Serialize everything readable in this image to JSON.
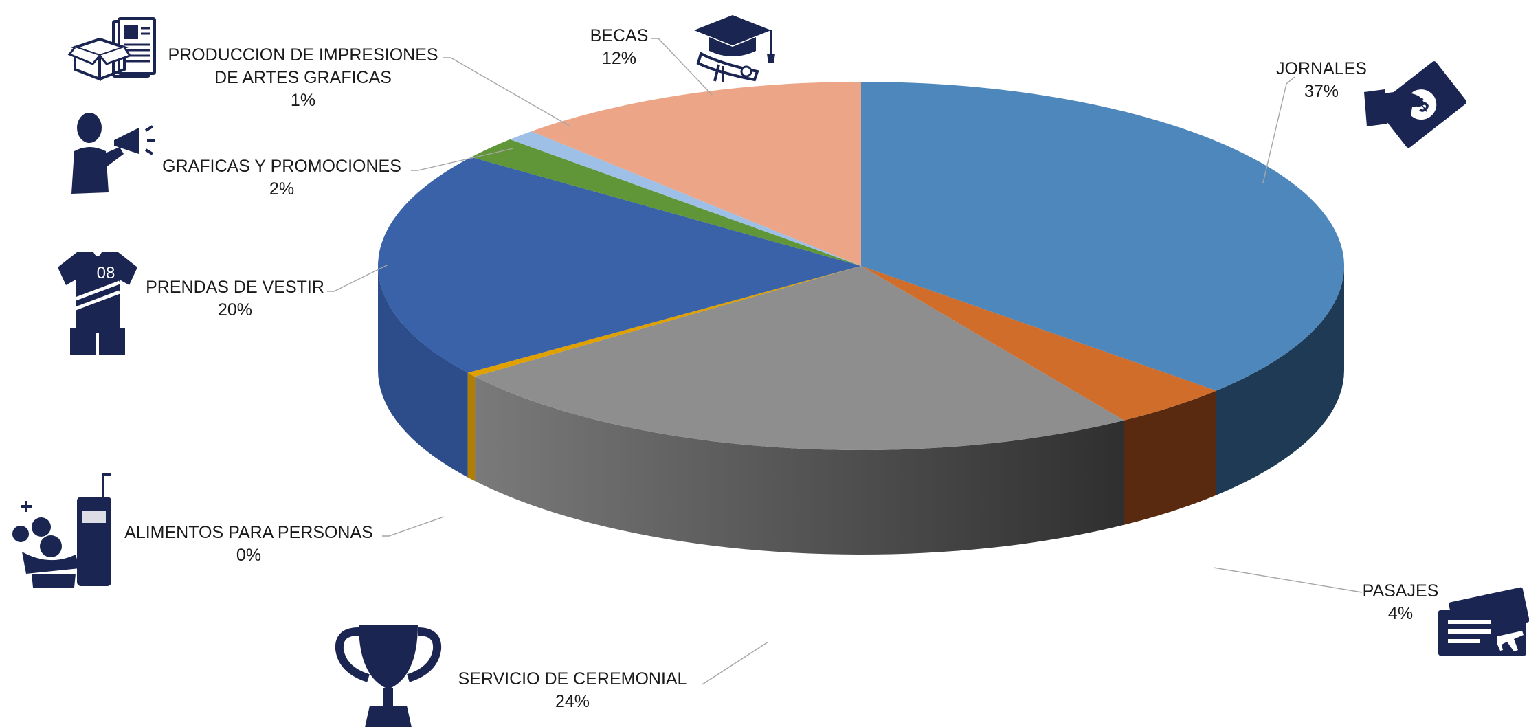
{
  "chart_data": {
    "type": "pie",
    "style": "3d",
    "categories": [
      "JORNALES",
      "PASAJES",
      "SERVICIO DE CEREMONIAL",
      "ALIMENTOS PARA PERSONAS",
      "PRENDAS DE VESTIR",
      "GRAFICAS Y PROMOCIONES",
      "PRODUCCION DE IMPRESIONES DE ARTES GRAFICAS",
      "BECAS"
    ],
    "values": [
      37,
      4,
      24,
      0.4,
      20,
      2,
      1,
      12
    ],
    "value_labels": [
      "37%",
      "4%",
      "24%",
      "0%",
      "20%",
      "2%",
      "1%",
      "12%"
    ],
    "colors": [
      "#4e87bb",
      "#d06d2a",
      "#8e8e8e",
      "#e0a100",
      "#3a62a8",
      "#609638",
      "#9fc0e6",
      "#eca587"
    ],
    "side_colors": [
      "#1f3a55",
      "#5a2a10",
      "#3a3a3a",
      "#b07e00",
      "#2c4c8a",
      "#3f6a25",
      "#7a98bf",
      "#c28068"
    ],
    "label_lines": [
      [
        "JORNALES"
      ],
      [
        "PASAJES"
      ],
      [
        "SERVICIO DE CEREMONIAL"
      ],
      [
        "ALIMENTOS PARA PERSONAS"
      ],
      [
        "PRENDAS DE VESTIR"
      ],
      [
        "GRAFICAS Y PROMOCIONES"
      ],
      [
        "PRODUCCION DE IMPRESIONES",
        "DE ARTES GRAFICAS"
      ],
      [
        "BECAS"
      ]
    ],
    "icons": [
      "money-hand-icon",
      "plane-ticket-icon",
      "trophy-icon",
      "food-drink-icon",
      "jersey-icon",
      "megaphone-person-icon",
      "box-newspaper-icon",
      "graduation-diploma-icon"
    ],
    "jersey_number": "08",
    "legend": "none",
    "title": ""
  }
}
